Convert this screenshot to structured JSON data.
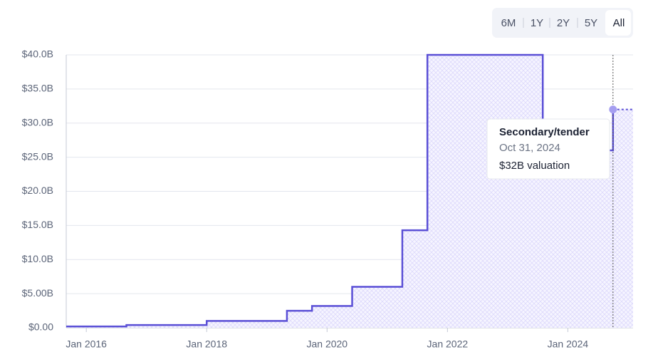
{
  "chart_data": {
    "type": "step",
    "range_buttons": [
      "6M",
      "1Y",
      "2Y",
      "5Y",
      "All"
    ],
    "selected_range": "All",
    "x": [
      "2015-09",
      "2016-09",
      "2018-01",
      "2019-05",
      "2019-10",
      "2020-06",
      "2021-04",
      "2021-09",
      "2023-08",
      "2024-10"
    ],
    "series": [
      {
        "color": "#5a4fd6",
        "values": [
          0.2,
          0.4,
          1.0,
          2.5,
          3.2,
          6.0,
          14.3,
          40,
          26,
          32
        ]
      }
    ],
    "xlim": [
      "2015-09",
      "2025-02"
    ],
    "xticks": [
      {
        "value": "2016-01",
        "label": "Jan 2016"
      },
      {
        "value": "2018-01",
        "label": "Jan 2018"
      },
      {
        "value": "2020-01",
        "label": "Jan 2020"
      },
      {
        "value": "2022-01",
        "label": "Jan 2022"
      },
      {
        "value": "2024-01",
        "label": "Jan 2024"
      }
    ],
    "ylim": [
      0,
      40
    ],
    "yticks": [
      {
        "value": 0,
        "label": "$0.00"
      },
      {
        "value": 5,
        "label": "$5.00B"
      },
      {
        "value": 10,
        "label": "$10.0B"
      },
      {
        "value": 15,
        "label": "$15.0B"
      },
      {
        "value": 20,
        "label": "$20.0B"
      },
      {
        "value": 25,
        "label": "$25.0B"
      },
      {
        "value": 30,
        "label": "$30.0B"
      },
      {
        "value": 35,
        "label": "$35.0B"
      },
      {
        "value": 40,
        "label": "$40.0B"
      }
    ],
    "grid": true,
    "tooltip": {
      "title": "Secondary/tender",
      "date": "Oct 31, 2024",
      "text": "$32B valuation"
    }
  }
}
